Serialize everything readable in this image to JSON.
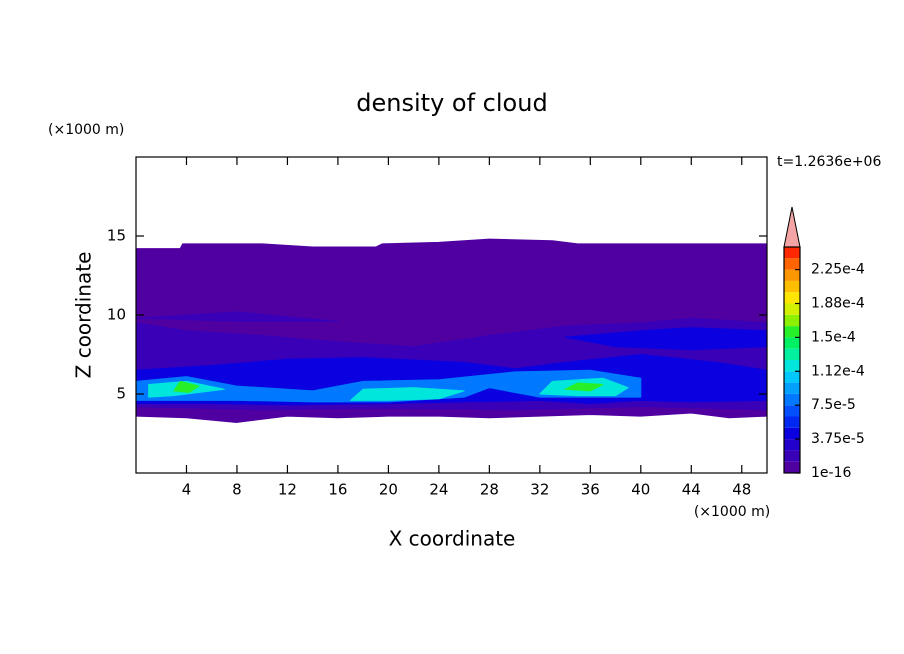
{
  "chart_data": {
    "type": "contour",
    "title": "density of cloud",
    "x_label": "X coordinate",
    "y_label": "Z coordinate",
    "x_unit": "(×1000 m)",
    "y_unit": "(×1000 m)",
    "time_label": "t=1.2636e+06",
    "xlim": [
      0,
      50
    ],
    "ylim": [
      0,
      20
    ],
    "xticks": [
      4,
      8,
      12,
      16,
      20,
      24,
      28,
      32,
      36,
      40,
      44,
      48
    ],
    "yticks": [
      5,
      10,
      15
    ],
    "colorbar": {
      "levels": [
        1e-16,
        1.25e-05,
        2.5e-05,
        3.75e-05,
        5e-05,
        6.25e-05,
        7.5e-05,
        8.75e-05,
        0.0001,
        0.0001125,
        0.000125,
        0.0001375,
        0.00015,
        0.0001625,
        0.000175,
        0.0001875,
        0.0002,
        0.0002125,
        0.000225,
        0.0002375,
        0.00025
      ],
      "colors": [
        "#5000a0",
        "#3a00b8",
        "#2400cc",
        "#0a00e0",
        "#0028f0",
        "#0050ff",
        "#0078ff",
        "#00a0ff",
        "#00c8ff",
        "#00e6dc",
        "#00f0a0",
        "#00f064",
        "#28f028",
        "#8cf000",
        "#d2f000",
        "#ffe600",
        "#ffbe00",
        "#ff9600",
        "#ff6400",
        "#ff2800"
      ],
      "extend_color": "#f4a4a4",
      "ticks": [
        1e-16,
        {
          "value": 3.75e-05,
          "label": "3.75e-5"
        },
        {
          "value": 7.5e-05,
          "label": "7.5e-5"
        },
        {
          "value": 0.0001125,
          "label": "1.12e-4"
        },
        {
          "value": 0.00015,
          "label": "1.5e-4"
        },
        {
          "value": 0.0001875,
          "label": "1.88e-4"
        },
        {
          "value": 0.000225,
          "label": "2.25e-4"
        }
      ]
    },
    "regions": [
      {
        "level": 1e-16,
        "points": [
          [
            0,
            14.2
          ],
          [
            3.5,
            14.2
          ],
          [
            3.7,
            14.5
          ],
          [
            10,
            14.5
          ],
          [
            14,
            14.3
          ],
          [
            19,
            14.3
          ],
          [
            19.5,
            14.5
          ],
          [
            24,
            14.6
          ],
          [
            28,
            14.8
          ],
          [
            33,
            14.7
          ],
          [
            35,
            14.5
          ],
          [
            50,
            14.5
          ],
          [
            50,
            3.6
          ],
          [
            47,
            3.5
          ],
          [
            44,
            3.8
          ],
          [
            40,
            3.6
          ],
          [
            36,
            3.7
          ],
          [
            32,
            3.6
          ],
          [
            28,
            3.5
          ],
          [
            24,
            3.6
          ],
          [
            20,
            3.6
          ],
          [
            16,
            3.5
          ],
          [
            12,
            3.6
          ],
          [
            8,
            3.2
          ],
          [
            4,
            3.5
          ],
          [
            0,
            3.6
          ]
        ]
      },
      {
        "level": 1.25e-05,
        "points": [
          [
            0,
            4.2
          ],
          [
            0,
            9.5
          ],
          [
            4,
            9
          ],
          [
            10,
            8.7
          ],
          [
            16,
            8.3
          ],
          [
            22,
            8
          ],
          [
            28,
            8.7
          ],
          [
            34,
            9.3
          ],
          [
            40,
            9.5
          ],
          [
            44,
            9.8
          ],
          [
            50,
            9.5
          ],
          [
            50,
            4
          ],
          [
            40,
            4.2
          ],
          [
            30,
            4
          ],
          [
            20,
            4.1
          ],
          [
            10,
            4
          ]
        ]
      },
      {
        "level": 1.25e-05,
        "points": [
          [
            0,
            9.8
          ],
          [
            8,
            10.2
          ],
          [
            16,
            9.6
          ],
          [
            8,
            9.6
          ]
        ]
      },
      {
        "level": 3.75e-05,
        "points": [
          [
            0,
            4.4
          ],
          [
            0,
            6.5
          ],
          [
            6,
            6.8
          ],
          [
            12,
            7.2
          ],
          [
            18,
            7.3
          ],
          [
            26,
            7
          ],
          [
            30,
            6.6
          ],
          [
            34,
            7
          ],
          [
            40,
            7.5
          ],
          [
            46,
            7
          ],
          [
            50,
            6.5
          ],
          [
            50,
            4.6
          ],
          [
            44,
            4.5
          ],
          [
            40,
            4.6
          ],
          [
            36,
            4.4
          ],
          [
            32,
            4.6
          ],
          [
            26,
            4.5
          ],
          [
            20,
            4.4
          ],
          [
            12,
            4.3
          ],
          [
            6,
            4.4
          ]
        ]
      },
      {
        "level": 3.75e-05,
        "points": [
          [
            34,
            8.6
          ],
          [
            40,
            9
          ],
          [
            44,
            9.2
          ],
          [
            50,
            9
          ],
          [
            50,
            8
          ],
          [
            44,
            7.8
          ],
          [
            38,
            8
          ]
        ]
      },
      {
        "level": 7.5e-05,
        "points": [
          [
            0,
            4.6
          ],
          [
            0,
            5.8
          ],
          [
            4,
            6.1
          ],
          [
            8,
            5.5
          ],
          [
            14,
            5.2
          ],
          [
            18,
            5.8
          ],
          [
            24,
            5.9
          ],
          [
            30,
            6.4
          ],
          [
            36,
            6.5
          ],
          [
            40,
            6
          ],
          [
            40,
            4.8
          ],
          [
            36,
            4.8
          ],
          [
            32,
            4.8
          ],
          [
            28,
            5.4
          ],
          [
            26,
            4.8
          ],
          [
            20,
            4.5
          ],
          [
            14,
            4.5
          ],
          [
            8,
            4.6
          ]
        ]
      },
      {
        "level": 0.0001125,
        "points": [
          [
            1,
            4.8
          ],
          [
            1,
            5.6
          ],
          [
            4,
            5.8
          ],
          [
            7,
            5.3
          ],
          [
            3,
            4.9
          ]
        ]
      },
      {
        "level": 0.0001125,
        "points": [
          [
            17,
            4.6
          ],
          [
            18,
            5.3
          ],
          [
            22,
            5.4
          ],
          [
            26,
            5.2
          ],
          [
            24,
            4.7
          ],
          [
            20,
            4.6
          ]
        ]
      },
      {
        "level": 0.0001125,
        "points": [
          [
            32,
            5
          ],
          [
            33,
            5.8
          ],
          [
            37,
            6
          ],
          [
            39,
            5.4
          ],
          [
            38,
            4.9
          ],
          [
            35,
            4.9
          ]
        ]
      },
      {
        "level": 0.00015,
        "points": [
          [
            3,
            5.2
          ],
          [
            3.5,
            5.8
          ],
          [
            5,
            5.5
          ],
          [
            4.2,
            5.1
          ]
        ]
      },
      {
        "level": 0.00015,
        "points": [
          [
            34,
            5.3
          ],
          [
            35,
            5.7
          ],
          [
            37,
            5.6
          ],
          [
            36,
            5.2
          ]
        ]
      }
    ]
  }
}
